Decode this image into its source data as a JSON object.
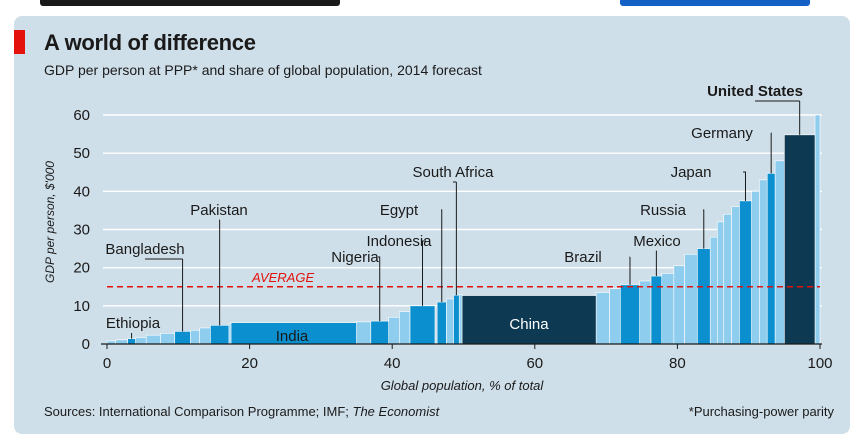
{
  "header": {
    "title": "A world of difference",
    "subtitle": "GDP per person at PPP* and share of global population, 2014 forecast"
  },
  "footer": {
    "sources_prefix": "Sources: International Comparison Programme; IMF; ",
    "sources_italic": "The Economist",
    "footnote": "*Purchasing-power parity"
  },
  "colors": {
    "background": "#cfdfe9",
    "bar_light": "#8fcdee",
    "bar_highlight": "#0b8fcf",
    "bar_dark": "#0d3a52",
    "average_line": "#e3120b",
    "accent": "#e3120b"
  },
  "chart_data": {
    "type": "bar",
    "variable_width": true,
    "xlabel": "Global population, % of total",
    "ylabel": "GDP per person, $'000",
    "xlim": [
      0,
      100
    ],
    "ylim": [
      0,
      60
    ],
    "xticks": [
      0,
      20,
      40,
      60,
      80,
      100
    ],
    "yticks": [
      0,
      10,
      20,
      30,
      40,
      50,
      60
    ],
    "grid": "horizontal",
    "average": {
      "label": "AVERAGE",
      "value": 15
    },
    "labeled_bars": [
      {
        "name": "Ethiopia",
        "x0": 2.9,
        "x1": 4.0,
        "value": 1.4,
        "style": "highlight"
      },
      {
        "name": "Bangladesh",
        "x0": 9.5,
        "x1": 11.7,
        "value": 3.3,
        "style": "highlight"
      },
      {
        "name": "Pakistan",
        "x0": 14.5,
        "x1": 17.1,
        "value": 4.9,
        "style": "highlight"
      },
      {
        "name": "India",
        "x0": 17.4,
        "x1": 35.0,
        "value": 5.6,
        "style": "highlight"
      },
      {
        "name": "Nigeria",
        "x0": 37.0,
        "x1": 39.5,
        "value": 6.0,
        "style": "highlight"
      },
      {
        "name": "Indonesia",
        "x0": 42.5,
        "x1": 46.0,
        "value": 10.0,
        "style": "highlight"
      },
      {
        "name": "Egypt",
        "x0": 46.3,
        "x1": 47.6,
        "value": 11.0,
        "style": "highlight"
      },
      {
        "name": "South Africa",
        "x0": 48.6,
        "x1": 49.4,
        "value": 12.8,
        "style": "highlight"
      },
      {
        "name": "China",
        "x0": 49.8,
        "x1": 68.6,
        "value": 12.7,
        "style": "dark"
      },
      {
        "name": "Brazil",
        "x0": 72.0,
        "x1": 74.7,
        "value": 15.5,
        "style": "highlight"
      },
      {
        "name": "Mexico",
        "x0": 76.3,
        "x1": 77.8,
        "value": 17.8,
        "style": "highlight"
      },
      {
        "name": "Russia",
        "x0": 82.8,
        "x1": 84.6,
        "value": 25.0,
        "style": "highlight"
      },
      {
        "name": "Japan",
        "x0": 88.7,
        "x1": 90.4,
        "value": 37.5,
        "style": "highlight"
      },
      {
        "name": "Germany",
        "x0": 92.6,
        "x1": 93.7,
        "value": 44.7,
        "style": "highlight"
      },
      {
        "name": "United States",
        "x0": 95.0,
        "x1": 99.3,
        "value": 54.8,
        "style": "dark",
        "bold": true
      }
    ],
    "other_bars": [
      {
        "x0": 0.0,
        "x1": 1.2,
        "value": 0.8
      },
      {
        "x0": 1.2,
        "x1": 2.9,
        "value": 1.1
      },
      {
        "x0": 4.0,
        "x1": 5.5,
        "value": 1.7
      },
      {
        "x0": 5.5,
        "x1": 7.5,
        "value": 2.3
      },
      {
        "x0": 7.5,
        "x1": 9.5,
        "value": 2.8
      },
      {
        "x0": 11.7,
        "x1": 13.0,
        "value": 3.6
      },
      {
        "x0": 13.0,
        "x1": 14.5,
        "value": 4.2
      },
      {
        "x0": 17.1,
        "x1": 17.4,
        "value": 5.3
      },
      {
        "x0": 35.0,
        "x1": 37.0,
        "value": 5.8
      },
      {
        "x0": 39.5,
        "x1": 41.0,
        "value": 7.0
      },
      {
        "x0": 41.0,
        "x1": 42.5,
        "value": 8.5
      },
      {
        "x0": 47.6,
        "x1": 48.6,
        "value": 11.8
      },
      {
        "x0": 49.4,
        "x1": 49.8,
        "value": 13.0
      },
      {
        "x0": 68.6,
        "x1": 70.5,
        "value": 13.5
      },
      {
        "x0": 70.5,
        "x1": 72.0,
        "value": 14.5
      },
      {
        "x0": 74.7,
        "x1": 76.3,
        "value": 16.5
      },
      {
        "x0": 77.8,
        "x1": 79.5,
        "value": 18.5
      },
      {
        "x0": 79.5,
        "x1": 81.0,
        "value": 20.5
      },
      {
        "x0": 81.0,
        "x1": 82.8,
        "value": 23.5
      },
      {
        "x0": 84.6,
        "x1": 85.6,
        "value": 28.0
      },
      {
        "x0": 85.6,
        "x1": 86.5,
        "value": 32.0
      },
      {
        "x0": 86.5,
        "x1": 87.6,
        "value": 34.0
      },
      {
        "x0": 87.6,
        "x1": 88.7,
        "value": 36.0
      },
      {
        "x0": 90.4,
        "x1": 91.5,
        "value": 40.0
      },
      {
        "x0": 91.5,
        "x1": 92.6,
        "value": 43.0
      },
      {
        "x0": 93.7,
        "x1": 95.0,
        "value": 48.0
      },
      {
        "x0": 99.3,
        "x1": 100.0,
        "value": 60.0
      }
    ]
  }
}
